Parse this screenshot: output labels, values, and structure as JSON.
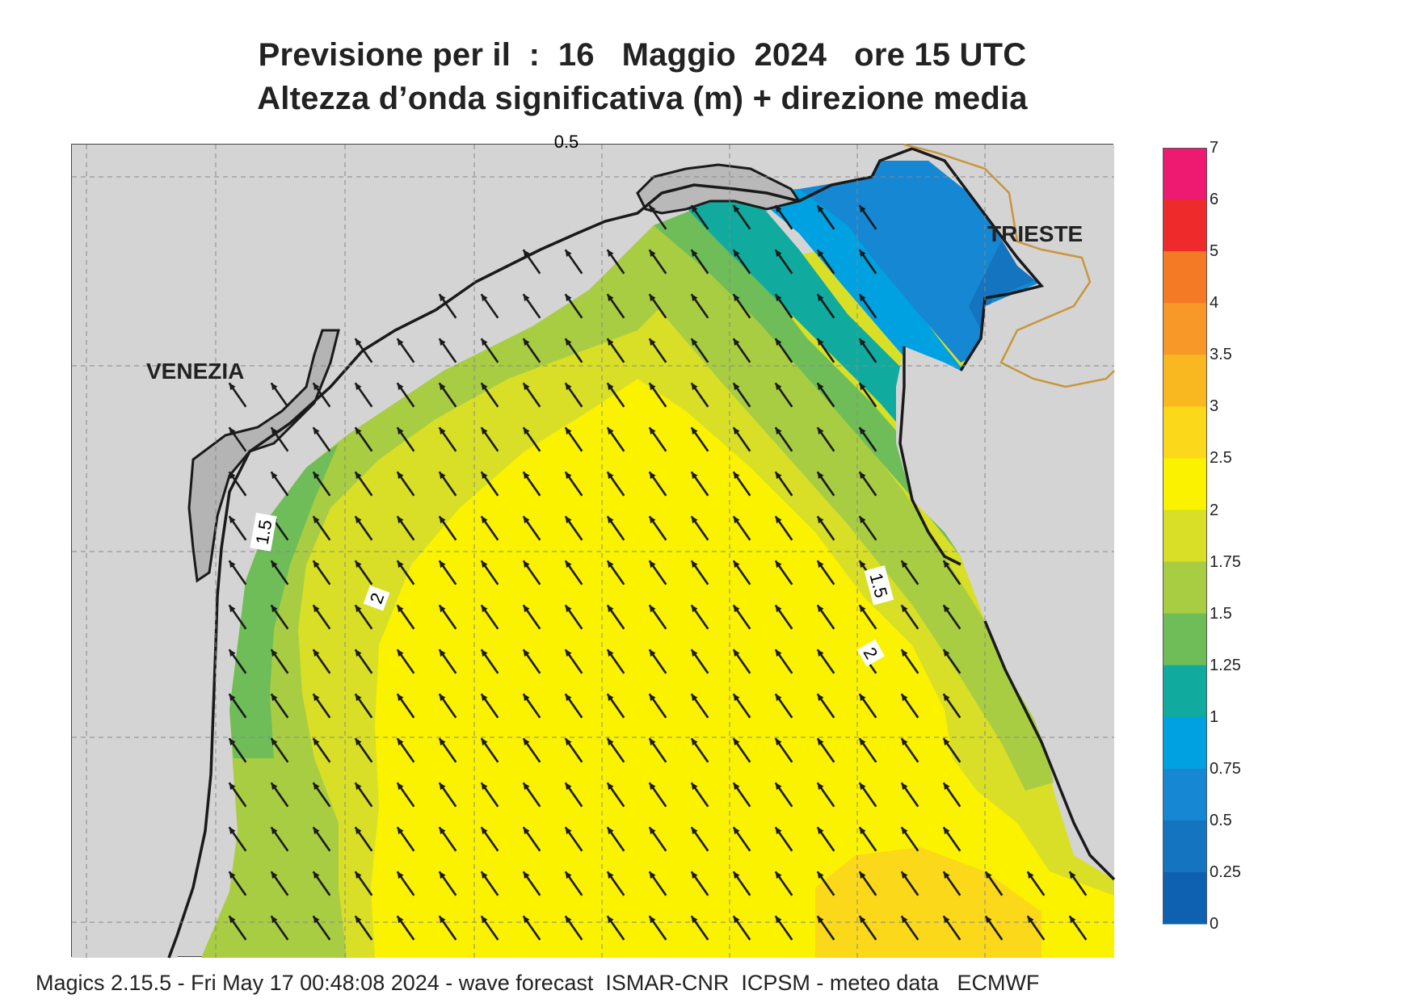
{
  "title": {
    "line1": "Previsione per il  :  16   Maggio  2024   ore 15 UTC",
    "line2": "Altezza d’onda significativa (m) + direzione media"
  },
  "map": {
    "places": {
      "venezia": "VENEZIA",
      "trieste": "TRIESTE"
    },
    "contour_labels": [
      "1.5",
      "2",
      "1.5",
      "2",
      "0.5"
    ],
    "colors": {
      "land": "#d4d4d4",
      "coastline": "#1a1a1a",
      "border": "#c8963c",
      "grid": "#888888",
      "arrow": "#1a1a1a"
    },
    "mean_direction": "north-west"
  },
  "legend": {
    "labels": [
      "7",
      "6",
      "5",
      "4",
      "3.5",
      "3",
      "2.5",
      "2",
      "1.75",
      "1.5",
      "1.25",
      "1",
      "0.75",
      "0.5",
      "0.25",
      "0"
    ],
    "colors": [
      "#ee1a72",
      "#ee2a2a",
      "#f47a26",
      "#f79828",
      "#f9b81f",
      "#fbd81a",
      "#fbf200",
      "#d8df26",
      "#a8cd42",
      "#6ebd58",
      "#10ab9e",
      "#00a1e0",
      "#1687d2",
      "#1574c0",
      "#0e61b0"
    ]
  },
  "footer": "Magics 2.15.5 - Fri May 17 00:48:08 2024 - wave forecast  ISMAR-CNR  ICPSM - meteo data   ECMWF"
}
